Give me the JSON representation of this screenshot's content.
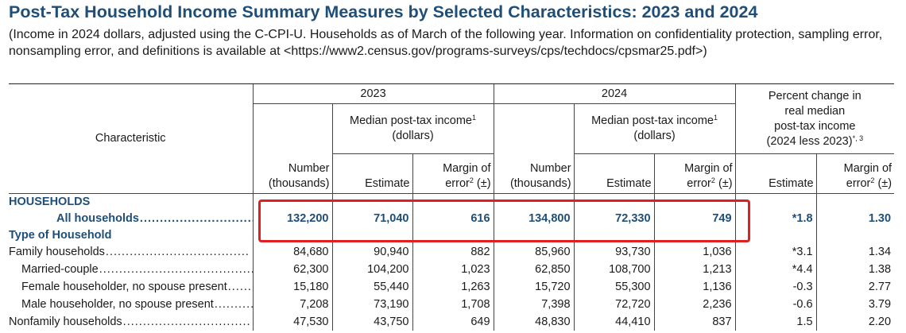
{
  "header": {
    "title": "Post-Tax Household Income Summary Measures by Selected Characteristics: 2023 and 2024",
    "subtitle": "(Income in 2024 dollars, adjusted using the C-CPI-U. Households as of March of the following year. Information on confidentiality protection, sampling error, nonsampling error, and definitions is available at <https://www2.census.gov/programs-surveys/cps/techdocs/cpsmar25.pdf>)"
  },
  "table": {
    "characteristic_label": "Characteristic",
    "year_2023": "2023",
    "year_2024": "2024",
    "median_label": "Median post-tax income",
    "median_sup": "1",
    "dollars_label": "(dollars)",
    "pct_change_label_l1": "Percent change in",
    "pct_change_label_l2": "real median",
    "pct_change_label_l3": "post-tax income",
    "pct_change_label_l4": "(2024 less 2023)",
    "pct_change_sup": "*, 3",
    "number_l1": "Number",
    "number_l2": "(thousands)",
    "estimate_label": "Estimate",
    "margin_l1": "Margin of",
    "margin_l2": "error",
    "margin_sup": "2",
    "margin_pm": "(±)",
    "sections": [
      {
        "title": "HOUSEHOLDS"
      },
      {
        "title": "Type of Household"
      }
    ],
    "all_households": {
      "label": "All households",
      "values": [
        "132,200",
        "71,040",
        "616",
        "134,800",
        "72,330",
        "749",
        "*1.8",
        "1.30"
      ]
    },
    "rows": [
      {
        "label": "Family households",
        "values": [
          "84,680",
          "90,940",
          "882",
          "85,960",
          "93,730",
          "1,036",
          "*3.1",
          "1.34"
        ]
      },
      {
        "label": "Married-couple",
        "values": [
          "62,300",
          "104,200",
          "1,023",
          "62,850",
          "108,700",
          "1,213",
          "*4.4",
          "1.38"
        ]
      },
      {
        "label": "Female householder, no spouse present",
        "values": [
          "15,180",
          "55,440",
          "1,263",
          "15,720",
          "55,300",
          "1,136",
          "-0.3",
          "2.77"
        ]
      },
      {
        "label": "Male householder, no spouse present",
        "values": [
          "7,208",
          "73,190",
          "1,708",
          "7,398",
          "72,720",
          "2,236",
          "-0.6",
          "3.79"
        ]
      },
      {
        "label": "Nonfamily households",
        "values": [
          "47,530",
          "43,750",
          "649",
          "48,830",
          "44,410",
          "837",
          "1.5",
          "2.20"
        ]
      }
    ]
  },
  "colors": {
    "title_blue": "#1f4e79",
    "highlight_red": "#e02020"
  }
}
